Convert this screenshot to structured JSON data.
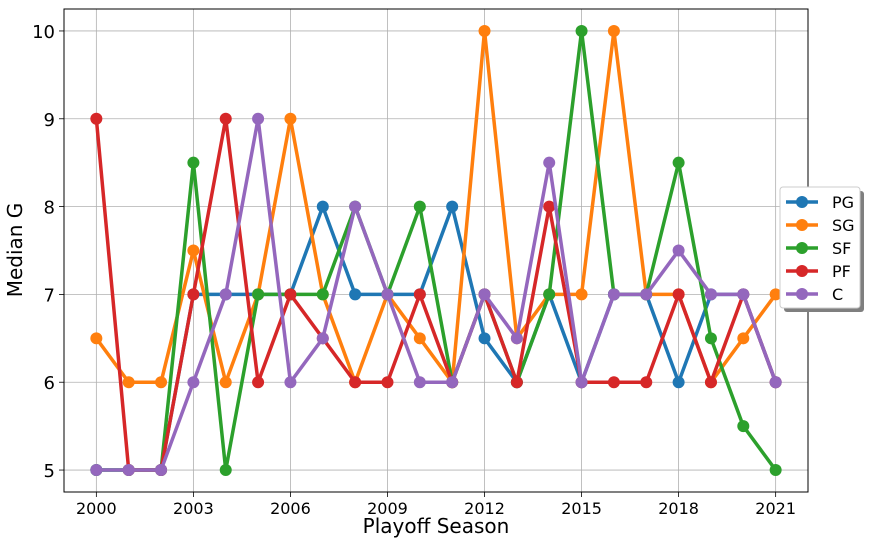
{
  "chart_data": {
    "type": "line",
    "title": "",
    "xlabel": "Playoff Season",
    "ylabel": "Median G",
    "x": [
      2000,
      2001,
      2002,
      2003,
      2004,
      2005,
      2006,
      2007,
      2008,
      2009,
      2010,
      2011,
      2012,
      2013,
      2014,
      2015,
      2016,
      2017,
      2018,
      2019,
      2020,
      2021
    ],
    "xticks": [
      2000,
      2003,
      2006,
      2009,
      2012,
      2015,
      2018,
      2021
    ],
    "yticks": [
      5,
      6,
      7,
      8,
      9,
      10
    ],
    "xlim": [
      1999,
      2022
    ],
    "ylim": [
      4.75,
      10.25
    ],
    "grid": true,
    "legend_position": "center-right",
    "series": [
      {
        "name": "PG",
        "color": "#1f77b4",
        "values": [
          5,
          5,
          5,
          7,
          7,
          7,
          7,
          8,
          7,
          7,
          7,
          8,
          6.5,
          6,
          7,
          6,
          7,
          7,
          6,
          7,
          7,
          6
        ]
      },
      {
        "name": "SG",
        "color": "#ff7f0e",
        "values": [
          6.5,
          6,
          6,
          7.5,
          6,
          7,
          9,
          7,
          6,
          7,
          6.5,
          6,
          10,
          6.5,
          7,
          7,
          10,
          7,
          7,
          6,
          6.5,
          7
        ]
      },
      {
        "name": "SF",
        "color": "#2ca02c",
        "values": [
          5,
          5,
          5,
          8.5,
          5,
          7,
          7,
          7,
          8,
          7,
          8,
          6,
          7,
          6,
          7,
          10,
          7,
          7,
          8.5,
          6.5,
          5.5,
          5
        ]
      },
      {
        "name": "PF",
        "color": "#d62728",
        "values": [
          9,
          5,
          5,
          7,
          9,
          6,
          7,
          6.5,
          6,
          6,
          7,
          6,
          7,
          6,
          8,
          6,
          6,
          6,
          7,
          6,
          7,
          6
        ]
      },
      {
        "name": "C",
        "color": "#9467bd",
        "values": [
          5,
          5,
          5,
          6,
          7,
          9,
          6,
          6.5,
          8,
          7,
          6,
          6,
          7,
          6.5,
          8.5,
          6,
          7,
          7,
          7.5,
          7,
          7,
          6
        ]
      }
    ]
  }
}
